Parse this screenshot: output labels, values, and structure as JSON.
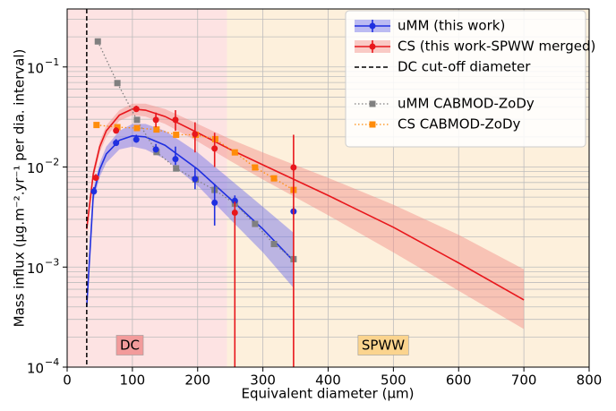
{
  "chart_data": {
    "type": "scatter",
    "xlabel": "Equivalent diameter (μm)",
    "ylabel": "Mass influx (μg.m⁻².yr⁻¹ per dia. interval)",
    "xlim": [
      0,
      800
    ],
    "xticks": [
      0,
      100,
      200,
      300,
      400,
      500,
      600,
      700,
      800
    ],
    "ylim": [
      0.0001,
      0.38
    ],
    "yticks": [
      {
        "value": 0.0001,
        "label": "10",
        "exponent": "−4"
      },
      {
        "value": 0.001,
        "label": "10",
        "exponent": "−3"
      },
      {
        "value": 0.01,
        "label": "10",
        "exponent": "−2"
      },
      {
        "value": 0.1,
        "label": "10",
        "exponent": "−1"
      }
    ],
    "log_y": true,
    "grid": true,
    "legend": "upper right",
    "regions": [
      {
        "label": "DC",
        "xlim": [
          0,
          245
        ],
        "color": "#fde3e3",
        "label_color": "#f29b9b"
      },
      {
        "label": "SPWW",
        "xlim": [
          245,
          800
        ],
        "color": "#fdf0dc",
        "label_color": "#fbd48e"
      }
    ],
    "vline": {
      "name": "DC cut-off diameter",
      "x": 30,
      "color": "#000000"
    },
    "series": [
      {
        "name": "uMM (this work)",
        "color": "#1f2fe0",
        "band_color": "#6b6be8",
        "marker": "o",
        "x": [
          41,
          75,
          106,
          136,
          166,
          196,
          226,
          257,
          347
        ],
        "values": [
          0.0057,
          0.0174,
          0.0188,
          0.015,
          0.012,
          0.0076,
          0.0044,
          0.0046,
          0.0036
        ],
        "lower": [
          0.0055,
          0.0165,
          0.0175,
          0.014,
          0.0105,
          0.006,
          0.0026,
          0.0044,
          0.0034
        ],
        "upper": [
          0.0063,
          0.019,
          0.021,
          0.017,
          0.016,
          0.01,
          0.0068,
          0.0052,
          0.004
        ],
        "fit": {
          "x": [
            30,
            40,
            50,
            60,
            80,
            100,
            120,
            150,
            200,
            250,
            300,
            347
          ],
          "values": [
            0.0004,
            0.0052,
            0.0095,
            0.0135,
            0.0185,
            0.0205,
            0.02,
            0.0165,
            0.0095,
            0.0048,
            0.0024,
            0.00115
          ],
          "lower": [
            0.0004,
            0.0045,
            0.008,
            0.011,
            0.015,
            0.016,
            0.015,
            0.012,
            0.0065,
            0.003,
            0.0014,
            0.00062
          ],
          "upper": [
            0.0004,
            0.006,
            0.011,
            0.016,
            0.023,
            0.027,
            0.027,
            0.023,
            0.014,
            0.0075,
            0.004,
            0.0022
          ]
        }
      },
      {
        "name": "CS (this work-SPWW merged)",
        "color": "#e8171c",
        "band_color": "#f28b86",
        "marker": "o",
        "x": [
          44,
          75,
          106,
          136,
          166,
          196,
          226,
          257,
          347
        ],
        "values": [
          0.0078,
          0.0231,
          0.038,
          0.0296,
          0.0296,
          0.0213,
          0.0153,
          0.0035,
          0.0099
        ],
        "lower": [
          0.0073,
          0.022,
          0.036,
          0.025,
          0.023,
          0.014,
          0.01,
          5e-05,
          5e-05
        ],
        "upper": [
          0.0085,
          0.025,
          0.041,
          0.035,
          0.037,
          0.028,
          0.022,
          0.0045,
          0.021
        ],
        "fit": {
          "x": [
            30,
            40,
            50,
            60,
            80,
            100,
            120,
            150,
            200,
            250,
            300,
            400,
            500,
            600,
            700
          ],
          "values": [
            0.0024,
            0.0085,
            0.016,
            0.023,
            0.033,
            0.038,
            0.037,
            0.032,
            0.022,
            0.015,
            0.0105,
            0.0052,
            0.0025,
            0.0011,
            0.00047
          ],
          "lower": [
            0.0022,
            0.0075,
            0.014,
            0.02,
            0.029,
            0.033,
            0.032,
            0.027,
            0.018,
            0.0115,
            0.0075,
            0.0033,
            0.0014,
            0.00058,
            0.00024
          ],
          "upper": [
            0.0026,
            0.0095,
            0.018,
            0.026,
            0.037,
            0.043,
            0.043,
            0.038,
            0.027,
            0.019,
            0.014,
            0.0078,
            0.0042,
            0.0021,
            0.00095
          ]
        }
      },
      {
        "name": "uMM CABMOD-ZoDy",
        "color": "#808080",
        "marker": "s",
        "x": [
          47,
          77,
          107,
          137,
          167,
          197,
          226,
          257,
          288,
          317,
          347
        ],
        "values": [
          0.18,
          0.069,
          0.0296,
          0.0141,
          0.0097,
          0.0075,
          0.0059,
          0.0043,
          0.0027,
          0.0017,
          0.0012
        ]
      },
      {
        "name": "CS CABMOD-ZoDy",
        "color": "#ff8c0a",
        "marker": "s",
        "x": [
          45,
          77,
          107,
          137,
          167,
          197,
          227,
          257,
          288,
          317,
          347
        ],
        "values": [
          0.0263,
          0.025,
          0.0245,
          0.0237,
          0.021,
          0.021,
          0.019,
          0.014,
          0.0099,
          0.0077,
          0.0059
        ]
      }
    ]
  }
}
